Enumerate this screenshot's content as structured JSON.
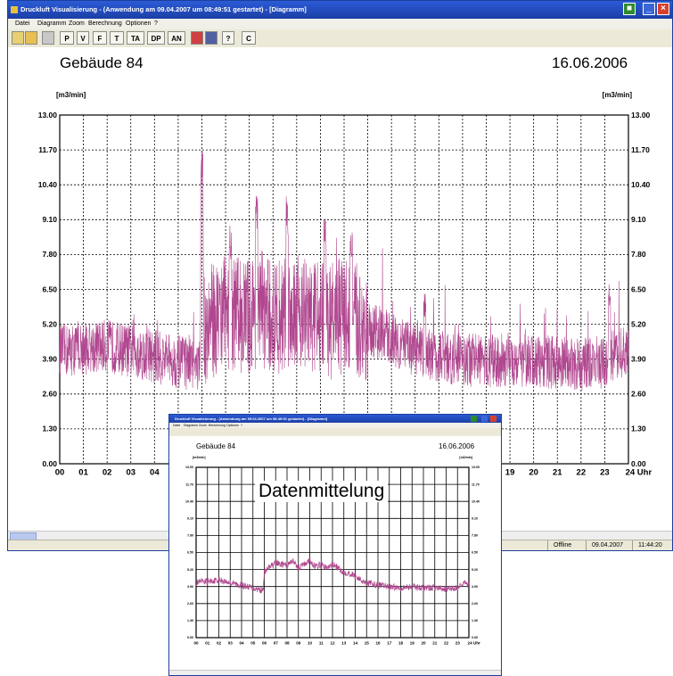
{
  "main_window": {
    "title": "Druckluft Visualisierung - (Anwendung am 09.04.2007 um 08:49:51 gestartet) - [Diagramm]",
    "menu": [
      "Datei",
      "Diagramm",
      "Zoom",
      "Berechnung",
      "Optionen",
      "?"
    ],
    "toolbar": [
      "P",
      "V",
      "F",
      "T",
      "TA",
      "DP",
      "AN",
      "C"
    ],
    "status": {
      "mode": "Offline",
      "date": "09.04.2007",
      "time": "11:44:20"
    }
  },
  "inset_window": {
    "title": "Druckluft Visualisierung - (Anwendung am 09.04.2007 um 08:49:51 gestartet) - [Diagramm]",
    "menu": [
      "Datei",
      "Diagramm",
      "Zoom",
      "Berechnung",
      "Optionen",
      "?"
    ],
    "caption": "Datenmittelung"
  },
  "colors": {
    "series": "#b0478f",
    "title_bar": "#1c3fa6",
    "grid": "#000000"
  },
  "chart_data": {
    "type": "line",
    "building": "Gebäude 84",
    "date": "16.06.2006",
    "unit_label": "[m3/min]",
    "x_axis_unit": "Uhr",
    "xlim": [
      0,
      24
    ],
    "ylim": [
      0,
      13
    ],
    "y_ticks": [
      "0.00",
      "1.30",
      "2.60",
      "3.90",
      "5.20",
      "6.50",
      "7.80",
      "9.10",
      "10.40",
      "11.70",
      "13.00"
    ],
    "x_ticks": [
      "00",
      "01",
      "02",
      "03",
      "04",
      "05",
      "06",
      "07",
      "08",
      "09",
      "10",
      "11",
      "12",
      "13",
      "14",
      "15",
      "16",
      "17",
      "18",
      "19",
      "20",
      "21",
      "22",
      "23",
      "24 Uhr"
    ],
    "grid": true,
    "series": [
      {
        "x": [
          0,
          1,
          2,
          3,
          4,
          5,
          5.9,
          6,
          6.5,
          7,
          7.5,
          8,
          8.5,
          9,
          9.5,
          10,
          10.5,
          11,
          11.5,
          12,
          12.5,
          13,
          13.5,
          14,
          14.5,
          15,
          16,
          17,
          18,
          19,
          20,
          21,
          22,
          23,
          23.5,
          24
        ],
        "y": [
          4.2,
          4.3,
          4.4,
          4.2,
          4.0,
          3.8,
          3.6,
          5.0,
          5.4,
          5.7,
          5.6,
          5.5,
          5.9,
          5.3,
          5.6,
          5.9,
          5.4,
          5.6,
          5.3,
          5.6,
          5.3,
          5.0,
          4.9,
          4.7,
          4.4,
          4.2,
          4.0,
          3.9,
          3.8,
          3.9,
          3.8,
          3.8,
          3.7,
          3.8,
          4.2,
          4.0
        ],
        "peaks_x": [
          6,
          7.2,
          8.3,
          9.6,
          11.2,
          12.3,
          15.4,
          23.2
        ],
        "peaks_y": [
          11.7,
          8.9,
          10.3,
          10.0,
          9.3,
          8.8,
          6.4,
          6.8
        ]
      }
    ]
  }
}
